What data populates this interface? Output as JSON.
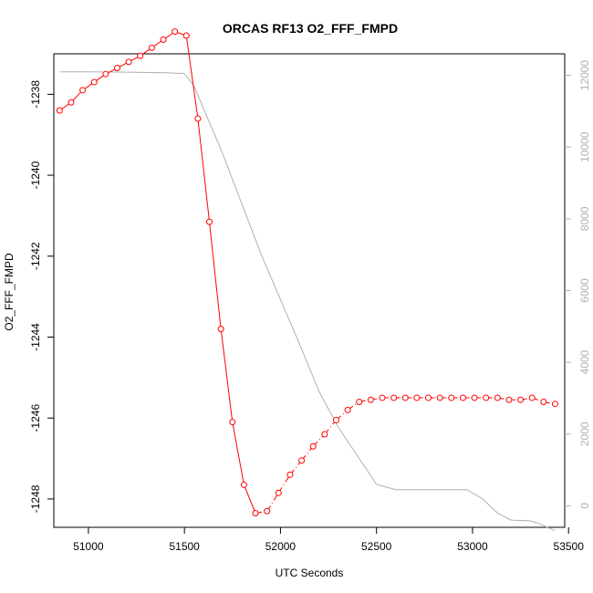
{
  "chart_data": {
    "type": "line",
    "title": "ORCAS RF13 O2_FFF_FMPD",
    "xlabel": "UTC Seconds",
    "ylabel": "O2_FFF_FMPD",
    "xlim": [
      50820,
      53480
    ],
    "ylim": [
      -1248.7,
      -1237.0
    ],
    "y2lim": [
      -600,
      12600
    ],
    "x_ticks": [
      51000,
      51500,
      52000,
      52500,
      53000,
      53500
    ],
    "x_tick_labels": [
      "51000",
      "51500",
      "52000",
      "52500",
      "53000",
      "53500"
    ],
    "y_ticks": [
      -1238,
      -1240,
      -1242,
      -1244,
      -1246,
      -1248
    ],
    "y_tick_labels": [
      "-1238",
      "-1240",
      "-1242",
      "-1244",
      "-1246",
      "-1248"
    ],
    "y2_ticks": [
      0,
      2000,
      4000,
      6000,
      8000,
      10000,
      12000
    ],
    "y2_tick_labels": [
      "0",
      "2000",
      "4000",
      "6000",
      "8000",
      "10000",
      "12000"
    ],
    "grid": false,
    "colors": {
      "primary": "#ff0000",
      "secondary": "#b0b0b0",
      "axes": "#000000"
    },
    "series": [
      {
        "axis": "left",
        "color": "#ff0000",
        "marker": "open-circle",
        "line_style": "solid-then-dashdot",
        "points": [
          [
            50850,
            -1238.4
          ],
          [
            50910,
            -1238.2
          ],
          [
            50970,
            -1237.9
          ],
          [
            51030,
            -1237.7
          ],
          [
            51090,
            -1237.5
          ],
          [
            51150,
            -1237.35
          ],
          [
            51210,
            -1237.2
          ],
          [
            51270,
            -1237.05
          ],
          [
            51330,
            -1236.85
          ],
          [
            51390,
            -1236.65
          ],
          [
            51450,
            -1236.45
          ],
          [
            51510,
            -1236.55
          ],
          [
            51570,
            -1238.6
          ],
          [
            51630,
            -1241.15
          ],
          [
            51690,
            -1243.8
          ],
          [
            51750,
            -1246.1
          ],
          [
            51810,
            -1247.65
          ],
          [
            51870,
            -1248.35
          ],
          [
            51930,
            -1248.3
          ],
          [
            51990,
            -1247.85
          ],
          [
            52050,
            -1247.4
          ],
          [
            52110,
            -1247.05
          ],
          [
            52170,
            -1246.7
          ],
          [
            52230,
            -1246.4
          ],
          [
            52290,
            -1246.05
          ],
          [
            52350,
            -1245.8
          ],
          [
            52410,
            -1245.6
          ],
          [
            52470,
            -1245.55
          ],
          [
            52530,
            -1245.5
          ],
          [
            52590,
            -1245.5
          ],
          [
            52650,
            -1245.5
          ],
          [
            52710,
            -1245.5
          ],
          [
            52770,
            -1245.5
          ],
          [
            52830,
            -1245.5
          ],
          [
            52890,
            -1245.5
          ],
          [
            52950,
            -1245.5
          ],
          [
            53010,
            -1245.5
          ],
          [
            53070,
            -1245.5
          ],
          [
            53130,
            -1245.5
          ],
          [
            53190,
            -1245.55
          ],
          [
            53250,
            -1245.55
          ],
          [
            53310,
            -1245.5
          ],
          [
            53370,
            -1245.6
          ],
          [
            53430,
            -1245.65
          ]
        ]
      },
      {
        "axis": "right",
        "color": "#b0b0b0",
        "marker": "none",
        "points": [
          [
            50850,
            12100
          ],
          [
            51000,
            12100
          ],
          [
            51200,
            12090
          ],
          [
            51400,
            12070
          ],
          [
            51500,
            12050
          ],
          [
            51550,
            11700
          ],
          [
            51700,
            9800
          ],
          [
            51900,
            7000
          ],
          [
            52100,
            4500
          ],
          [
            52200,
            3200
          ],
          [
            52300,
            2200
          ],
          [
            52400,
            1400
          ],
          [
            52500,
            600
          ],
          [
            52600,
            450
          ],
          [
            52800,
            450
          ],
          [
            52970,
            450
          ],
          [
            53050,
            200
          ],
          [
            53130,
            -200
          ],
          [
            53200,
            -400
          ],
          [
            53300,
            -420
          ],
          [
            53340,
            -480
          ],
          [
            53430,
            -700
          ]
        ]
      }
    ]
  }
}
